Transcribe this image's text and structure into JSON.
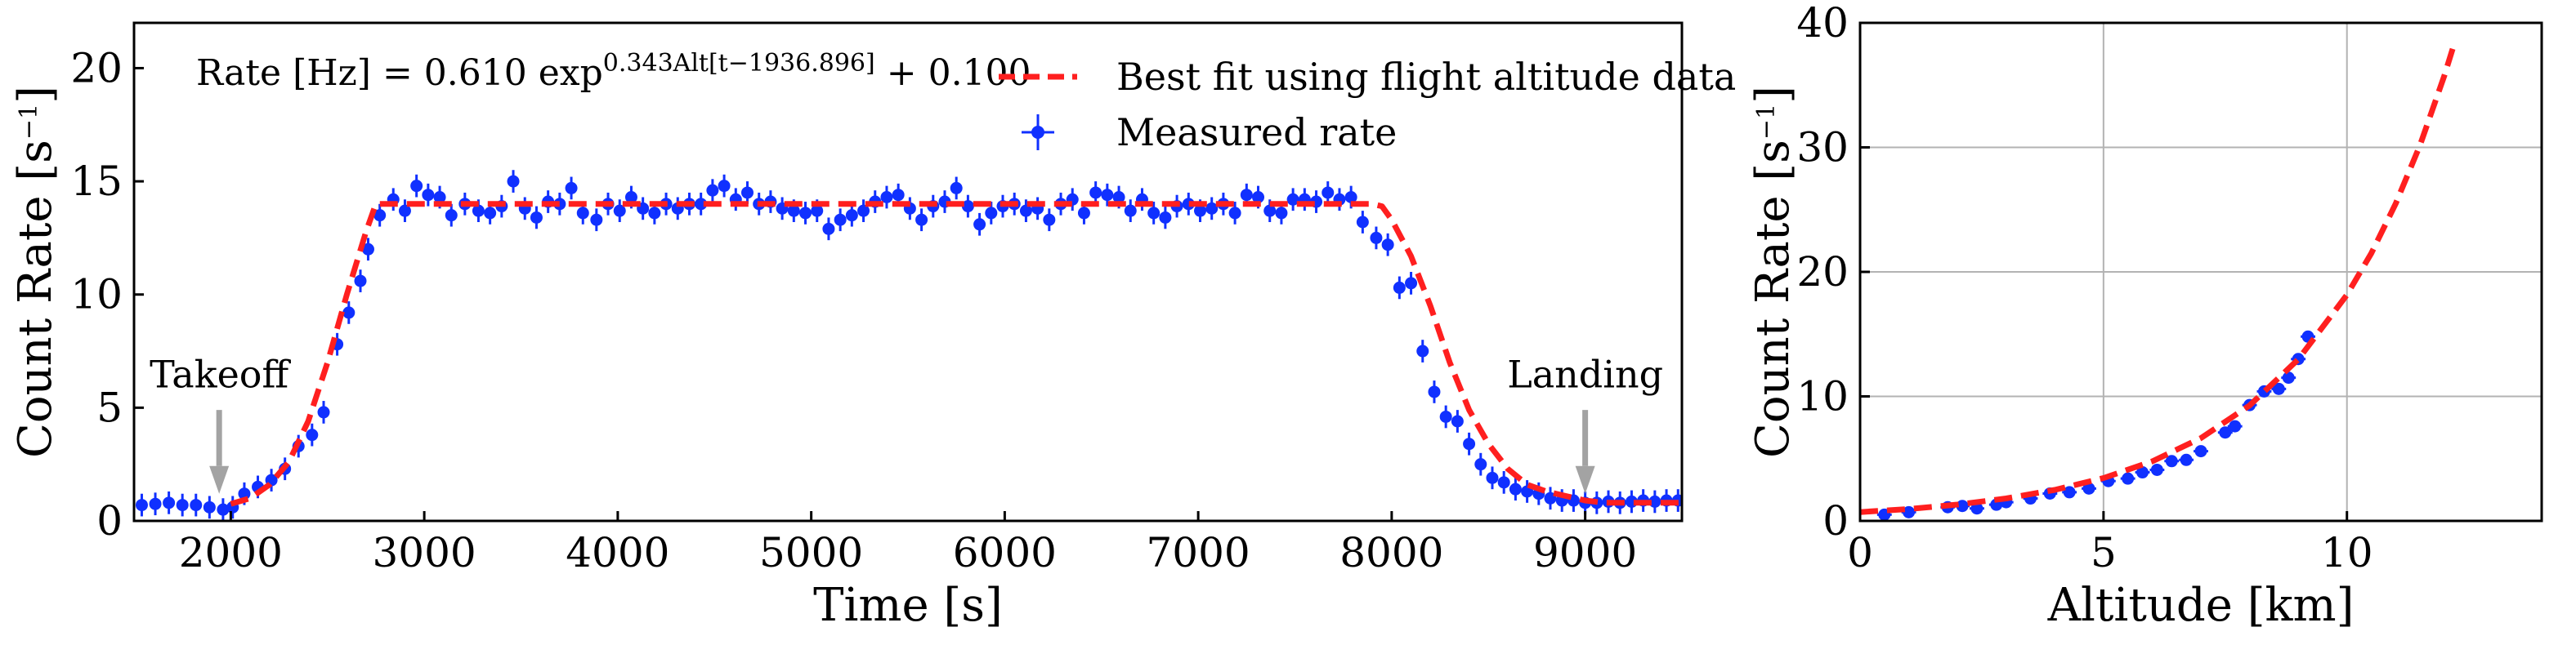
{
  "colors": {
    "fit": "#ff1f1f",
    "data": "#1030ff",
    "arrow": "#a3a3a3",
    "grid": "#b3b3b3",
    "axis": "#000000"
  },
  "chart_data": [
    {
      "type": "scatter",
      "title": "",
      "xlabel": "Time [s]",
      "ylabel": "Count Rate [s",
      "ylabel_exponent": "−1",
      "ylabel_suffix": "]",
      "xlim": [
        1500,
        9500
      ],
      "ylim": [
        0,
        22
      ],
      "xticks": [
        2000,
        3000,
        4000,
        5000,
        6000,
        7000,
        8000,
        9000
      ],
      "yticks": [
        0,
        5,
        10,
        15,
        20
      ],
      "grid": false,
      "legend_position": "top-right",
      "formula": {
        "lhs": "Rate [Hz] = 0.610 exp",
        "exponent": "0.343Alt[t−1936.896]",
        "rhs": " + 0.100"
      },
      "legend": [
        {
          "label": "Best fit using flight altitude data",
          "style": "dashed-line"
        },
        {
          "label": "Measured rate",
          "style": "point-with-errorbars"
        }
      ],
      "annotations": [
        {
          "text": "Takeoff",
          "x": 1940,
          "y_text": 5.9,
          "y_arrow_top": 4.9,
          "y_arrow_tip": 1.2
        },
        {
          "text": "Landing",
          "x": 9000,
          "y_text": 5.9,
          "y_arrow_top": 4.9,
          "y_arrow_tip": 1.2
        }
      ],
      "series": [
        {
          "name": "Best fit using flight altitude data",
          "style": "dashed",
          "x": [
            2000,
            2100,
            2200,
            2300,
            2400,
            2500,
            2600,
            2700,
            2750,
            2800,
            3000,
            4000,
            5000,
            6000,
            7000,
            7800,
            7900,
            7950,
            8000,
            8100,
            8200,
            8300,
            8400,
            8500,
            8600,
            8700,
            8800,
            8900,
            9000,
            9100,
            9500
          ],
          "y": [
            0.75,
            1.0,
            1.6,
            2.6,
            4.4,
            7.0,
            10.0,
            12.8,
            14.0,
            14.0,
            14.0,
            14.0,
            14.0,
            14.0,
            14.0,
            14.0,
            14.0,
            13.9,
            13.3,
            11.7,
            9.5,
            7.0,
            4.9,
            3.4,
            2.3,
            1.6,
            1.3,
            1.1,
            0.9,
            0.8,
            0.8
          ]
        },
        {
          "name": "Measured rate",
          "style": "points",
          "x": [
            1540,
            1610,
            1680,
            1750,
            1820,
            1890,
            1960,
            2010,
            2070,
            2140,
            2210,
            2280,
            2350,
            2420,
            2480,
            2550,
            2610,
            2670,
            2710,
            2770,
            2840,
            2900,
            2960,
            3020,
            3080,
            3140,
            3210,
            3280,
            3340,
            3400,
            3460,
            3520,
            3580,
            3640,
            3700,
            3760,
            3820,
            3890,
            3950,
            4010,
            4070,
            4130,
            4190,
            4250,
            4310,
            4370,
            4430,
            4490,
            4550,
            4610,
            4670,
            4730,
            4790,
            4850,
            4910,
            4970,
            5030,
            5090,
            5150,
            5210,
            5270,
            5330,
            5390,
            5450,
            5510,
            5570,
            5630,
            5690,
            5750,
            5810,
            5870,
            5930,
            5990,
            6050,
            6110,
            6170,
            6230,
            6290,
            6350,
            6410,
            6470,
            6530,
            6590,
            6650,
            6710,
            6770,
            6830,
            6890,
            6950,
            7010,
            7070,
            7130,
            7190,
            7250,
            7310,
            7370,
            7430,
            7490,
            7550,
            7610,
            7670,
            7730,
            7790,
            7850,
            7920,
            7980,
            8040,
            8100,
            8160,
            8220,
            8280,
            8340,
            8400,
            8460,
            8520,
            8580,
            8640,
            8700,
            8760,
            8820,
            8880,
            8940,
            9000,
            9060,
            9120,
            9180,
            9240,
            9300,
            9360,
            9420,
            9480
          ],
          "y": [
            0.7,
            0.75,
            0.8,
            0.7,
            0.7,
            0.6,
            0.5,
            0.6,
            1.2,
            1.5,
            1.8,
            2.3,
            3.3,
            3.8,
            4.8,
            7.8,
            9.2,
            10.6,
            12.0,
            13.5,
            14.2,
            13.7,
            14.8,
            14.4,
            14.3,
            13.5,
            14.0,
            13.7,
            13.6,
            13.9,
            15.0,
            13.8,
            13.4,
            14.1,
            14.0,
            14.7,
            13.6,
            13.3,
            14.0,
            13.7,
            14.3,
            13.8,
            13.6,
            14.0,
            13.8,
            14.0,
            14.0,
            14.6,
            14.8,
            14.2,
            14.5,
            14.0,
            14.1,
            13.8,
            13.7,
            13.6,
            13.7,
            12.9,
            13.3,
            13.5,
            13.7,
            14.1,
            14.3,
            14.4,
            13.8,
            13.3,
            13.9,
            14.1,
            14.7,
            13.9,
            13.1,
            13.6,
            13.9,
            14.0,
            13.7,
            13.8,
            13.3,
            14.0,
            14.2,
            13.6,
            14.5,
            14.4,
            14.3,
            13.7,
            14.2,
            13.6,
            13.4,
            13.9,
            14.0,
            13.7,
            13.8,
            14.0,
            13.6,
            14.4,
            14.3,
            13.7,
            13.6,
            14.2,
            14.2,
            14.1,
            14.5,
            14.2,
            14.3,
            13.2,
            12.5,
            12.2,
            10.3,
            10.5,
            7.5,
            5.7,
            4.6,
            4.4,
            3.4,
            2.5,
            1.9,
            1.7,
            1.4,
            1.3,
            1.2,
            1.0,
            0.9,
            0.9,
            0.8,
            0.8,
            0.85,
            0.8,
            0.85,
            0.9,
            0.85,
            0.9,
            0.9
          ]
        }
      ]
    },
    {
      "type": "scatter",
      "title": "",
      "xlabel": "Altitude [km]",
      "ylabel": "Count Rate [s",
      "ylabel_exponent": "−1",
      "ylabel_suffix": "]",
      "xlim": [
        0,
        14
      ],
      "ylim": [
        0,
        40
      ],
      "xticks": [
        0,
        5,
        10
      ],
      "yticks": [
        0,
        10,
        20,
        30,
        40
      ],
      "grid": true,
      "legend_position": "none",
      "series": [
        {
          "name": "Best fit using flight altitude data",
          "style": "dashed",
          "x": [
            0,
            1,
            2,
            3,
            4,
            5,
            6,
            7,
            8,
            9,
            10,
            10.5,
            11,
            11.5,
            12,
            12.2
          ],
          "y": [
            0.71,
            0.96,
            1.31,
            1.8,
            2.49,
            3.44,
            4.78,
            6.65,
            9.27,
            12.97,
            18.16,
            21.49,
            25.47,
            30.17,
            35.76,
            38.28
          ]
        },
        {
          "name": "Measured rate",
          "style": "points",
          "x": [
            0.5,
            1.0,
            1.8,
            2.1,
            2.4,
            2.8,
            3.0,
            3.5,
            3.9,
            4.3,
            4.7,
            5.1,
            5.5,
            5.8,
            6.1,
            6.4,
            6.7,
            7.0,
            7.5,
            7.7,
            8.0,
            8.3,
            8.6,
            8.8,
            9.0,
            9.2
          ],
          "y": [
            0.5,
            0.7,
            1.1,
            1.2,
            1.0,
            1.3,
            1.5,
            1.8,
            2.2,
            2.3,
            2.6,
            3.2,
            3.4,
            3.9,
            4.1,
            4.8,
            4.9,
            5.6,
            7.1,
            7.6,
            9.3,
            10.4,
            10.6,
            11.5,
            13.0,
            14.8
          ]
        }
      ]
    }
  ]
}
